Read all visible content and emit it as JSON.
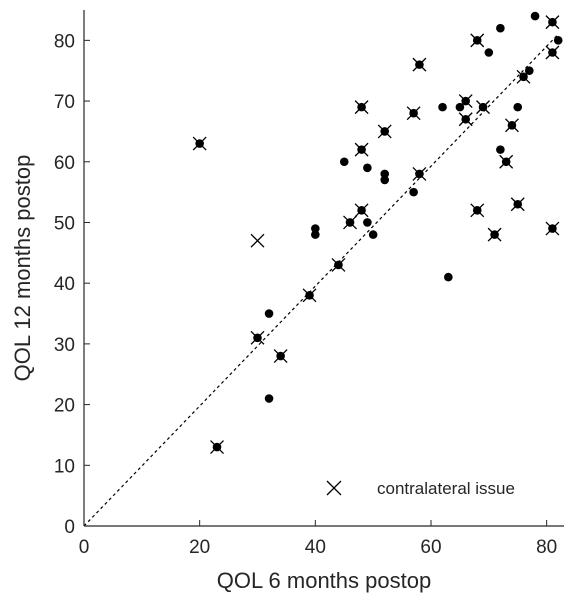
{
  "chart_data": {
    "type": "scatter",
    "title": "",
    "xlabel": "QOL 6 months postop",
    "ylabel": "QOL 12 months postop",
    "xlim": [
      0,
      83
    ],
    "ylim": [
      0,
      85
    ],
    "xticks": [
      0,
      20,
      40,
      60,
      80
    ],
    "yticks": [
      0,
      10,
      20,
      30,
      40,
      50,
      60,
      70,
      80
    ],
    "reference_line": {
      "style": "dotted",
      "from": [
        0,
        0
      ],
      "to": [
        82,
        81
      ]
    },
    "grid": false,
    "legend": {
      "position": "bottom-right",
      "entries": [
        {
          "marker": "x",
          "label": "contralateral issue"
        }
      ]
    },
    "colors": {
      "marker": "#000000",
      "axis": "#262626"
    },
    "series": [
      {
        "marker": "dot",
        "x": [
          20,
          23,
          30,
          32,
          32,
          34,
          39,
          40,
          40,
          44,
          45,
          46,
          48,
          48,
          48,
          49,
          49,
          50,
          52,
          52,
          52,
          57,
          57,
          58,
          58,
          62,
          63,
          65,
          66,
          66,
          68,
          68,
          69,
          70,
          71,
          72,
          72,
          73,
          74,
          75,
          75,
          76,
          77,
          78,
          81,
          81,
          81,
          82
        ],
        "y": [
          63,
          13,
          31,
          35,
          21,
          28,
          38,
          49,
          48,
          43,
          60,
          50,
          69,
          62,
          52,
          59,
          50,
          48,
          65,
          58,
          57,
          68,
          55,
          76,
          58,
          69,
          41,
          69,
          70,
          67,
          80,
          52,
          69,
          78,
          48,
          82,
          62,
          60,
          66,
          69,
          53,
          74,
          75,
          84,
          83,
          78,
          49,
          80
        ]
      },
      {
        "name": "contralateral issue",
        "marker": "x",
        "x": [
          20,
          23,
          30,
          30,
          34,
          39,
          44,
          46,
          48,
          48,
          48,
          52,
          57,
          58,
          58,
          66,
          66,
          68,
          68,
          69,
          71,
          73,
          74,
          75,
          76,
          81,
          81,
          81
        ],
        "y": [
          63,
          13,
          47,
          31,
          28,
          38,
          43,
          50,
          69,
          62,
          52,
          65,
          68,
          76,
          58,
          70,
          67,
          80,
          52,
          69,
          48,
          60,
          66,
          53,
          74,
          83,
          78,
          49
        ]
      }
    ]
  }
}
